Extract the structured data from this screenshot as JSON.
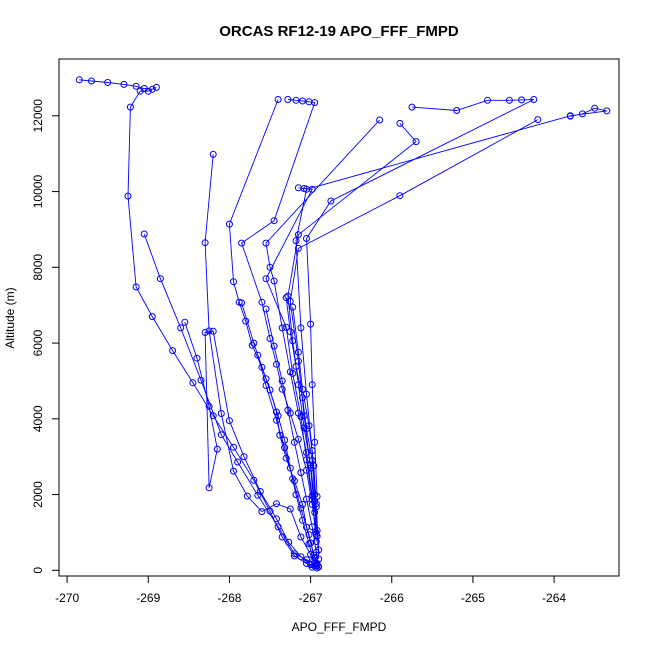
{
  "chart_data": {
    "type": "line",
    "title": "ORCAS RF12-19 APO_FFF_FMPD",
    "xlabel": "APO_FFF_FMPD",
    "ylabel": "Altitude (m)",
    "xlim": [
      -270.1,
      -263.2
    ],
    "ylim": [
      -150,
      13500
    ],
    "xticks": [
      -270,
      -269,
      -268,
      -267,
      -266,
      -265,
      -264
    ],
    "xtick_labels": [
      "-270",
      "-269",
      "-268",
      "-267",
      "-266",
      "-265",
      "-264"
    ],
    "yticks": [
      0,
      2000,
      4000,
      6000,
      8000,
      10000,
      12000
    ],
    "ytick_labels": [
      "0",
      "2000",
      "4000",
      "6000",
      "8000",
      "10000",
      "12000"
    ],
    "grid": false,
    "line_color": "#0000ff",
    "marker": "open-circle",
    "series": [
      {
        "x": [
          -269.85,
          -269.7,
          -269.5,
          -269.3,
          -269.15,
          -269.05,
          -268.95,
          -268.9,
          -269.0,
          -269.1,
          -269.22,
          -269.25,
          -269.15,
          -268.95,
          -268.7,
          -268.45,
          -268.2,
          -267.95,
          -267.7,
          -267.5,
          -267.35,
          -267.2,
          -267.05,
          -266.98,
          -266.92
        ],
        "y": [
          12950,
          12920,
          12880,
          12830,
          12780,
          12720,
          12700,
          12750,
          12650,
          12650,
          12230,
          9880,
          7480,
          6700,
          5800,
          4950,
          4080,
          3250,
          2380,
          1560,
          880,
          380,
          180,
          80,
          60
        ]
      },
      {
        "x": [
          -269.05,
          -268.85,
          -268.6,
          -268.35,
          -268.1,
          -267.9,
          -267.65,
          -267.4,
          -267.2,
          -267.05,
          -266.95,
          -266.92
        ],
        "y": [
          8880,
          7700,
          6400,
          5020,
          3580,
          2860,
          1980,
          1150,
          440,
          280,
          160,
          120
        ]
      },
      {
        "x": [
          -268.55,
          -268.4,
          -268.25,
          -268.15,
          -268.25,
          -268.3,
          -268.2,
          -268.0,
          -267.82,
          -267.62,
          -267.42,
          -267.27,
          -267.12,
          -267.0,
          -266.95
        ],
        "y": [
          6550,
          5600,
          4330,
          3200,
          2180,
          6280,
          6310,
          3950,
          3000,
          2080,
          1360,
          740,
          360,
          150,
          110
        ]
      },
      {
        "x": [
          -268.2,
          -268.3,
          -268.25,
          -268.1,
          -267.95,
          -267.78,
          -267.6,
          -267.42,
          -267.25,
          -267.12,
          -267.0,
          -266.95
        ],
        "y": [
          10980,
          8650,
          6320,
          4140,
          2620,
          1960,
          1550,
          1760,
          1620,
          880,
          420,
          200
        ]
      },
      {
        "x": [
          -267.4,
          -268.0,
          -267.95,
          -267.88,
          -267.8,
          -267.72,
          -267.6,
          -267.5,
          -267.42,
          -267.38,
          -267.3,
          -267.2,
          -267.1,
          -267.05,
          -267.0,
          -266.95,
          -266.92
        ],
        "y": [
          12430,
          9140,
          7620,
          7080,
          6580,
          5940,
          5360,
          4760,
          4180,
          3570,
          2960,
          2360,
          1740,
          1140,
          720,
          340,
          140
        ]
      },
      {
        "x": [
          -267.28,
          -267.18,
          -267.1,
          -267.02,
          -266.95,
          -267.45,
          -267.85,
          -267.6,
          -267.5,
          -267.42,
          -267.35,
          -267.25,
          -267.15,
          -267.05,
          -266.98,
          -266.92
        ],
        "y": [
          12430,
          12410,
          12390,
          12370,
          12350,
          9230,
          8640,
          7080,
          6120,
          5440,
          4780,
          4150,
          3460,
          2640,
          1740,
          900
        ]
      },
      {
        "x": [
          -266.15,
          -267.55,
          -267.5,
          -267.45,
          -267.35,
          -267.25,
          -267.15,
          -267.05,
          -266.98,
          -266.94
        ],
        "y": [
          11890,
          8640,
          8000,
          7640,
          6400,
          5240,
          4150,
          3110,
          1970,
          1020
        ]
      },
      {
        "x": [
          -265.9,
          -265.7,
          -267.15,
          -267.28,
          -267.22,
          -267.15,
          -267.08,
          -267.0,
          -266.95,
          -266.93
        ],
        "y": [
          11800,
          11320,
          8860,
          7240,
          6060,
          4900,
          3760,
          2780,
          1820,
          950
        ]
      },
      {
        "x": [
          -265.75,
          -265.2,
          -264.82,
          -264.55,
          -264.4,
          -264.25,
          -266.75,
          -267.05,
          -267.0,
          -266.98,
          -266.95,
          -266.92
        ],
        "y": [
          12230,
          12140,
          12410,
          12410,
          12420,
          12430,
          9750,
          8760,
          6500,
          4900,
          3380,
          1950
        ]
      },
      {
        "x": [
          -264.2,
          -265.9,
          -267.15,
          -267.25,
          -267.15,
          -267.08,
          -267.0,
          -266.95
        ],
        "y": [
          11900,
          9890,
          8500,
          7100,
          5520,
          4080,
          2700,
          1530
        ]
      },
      {
        "x": [
          -263.8,
          -263.65,
          -263.5,
          -263.35,
          -263.8,
          -267.05,
          -267.18,
          -267.12,
          -267.05,
          -266.98,
          -266.93
        ],
        "y": [
          11990,
          12050,
          12200,
          12130,
          12000,
          10060,
          8700,
          6400,
          4650,
          3160,
          1760
        ]
      },
      {
        "x": [
          -267.15,
          -267.08,
          -266.98,
          -267.55,
          -267.3,
          -267.22,
          -267.12,
          -267.05,
          -266.98,
          -266.93
        ],
        "y": [
          10100,
          10080,
          10060,
          7700,
          6420,
          5200,
          4060,
          2920,
          1870,
          760
        ]
      },
      {
        "x": [
          -267.85,
          -267.7,
          -267.55,
          -267.4,
          -267.32,
          -267.25,
          -267.18,
          -267.1,
          -267.02,
          -266.96
        ],
        "y": [
          7060,
          6000,
          5060,
          4080,
          3440,
          2700,
          2000,
          1320,
          700,
          260
        ]
      },
      {
        "x": [
          -267.55,
          -267.45,
          -267.35,
          -267.28,
          -267.2,
          -267.12,
          -267.05,
          -266.98,
          -266.93,
          -266.9
        ],
        "y": [
          6900,
          5920,
          5000,
          4230,
          3380,
          2580,
          1880,
          1150,
          470,
          90
        ]
      },
      {
        "x": [
          -267.3,
          -267.25,
          -267.18,
          -267.1,
          -267.05,
          -266.98,
          -266.95,
          -266.92,
          -266.9
        ],
        "y": [
          7200,
          6300,
          5380,
          4560,
          3740,
          2900,
          2000,
          1050,
          300
        ]
      },
      {
        "x": [
          -267.22,
          -267.15,
          -267.1,
          -267.02,
          -266.96,
          -266.93,
          -266.9
        ],
        "y": [
          6950,
          5760,
          4780,
          3820,
          2760,
          1680,
          540
        ]
      },
      {
        "x": [
          -267.65,
          -267.55,
          -267.42,
          -267.32,
          -267.22,
          -267.12,
          -267.02,
          -266.96,
          -266.92
        ],
        "y": [
          5680,
          4880,
          3960,
          3240,
          2420,
          1640,
          940,
          400,
          180
        ]
      }
    ]
  }
}
